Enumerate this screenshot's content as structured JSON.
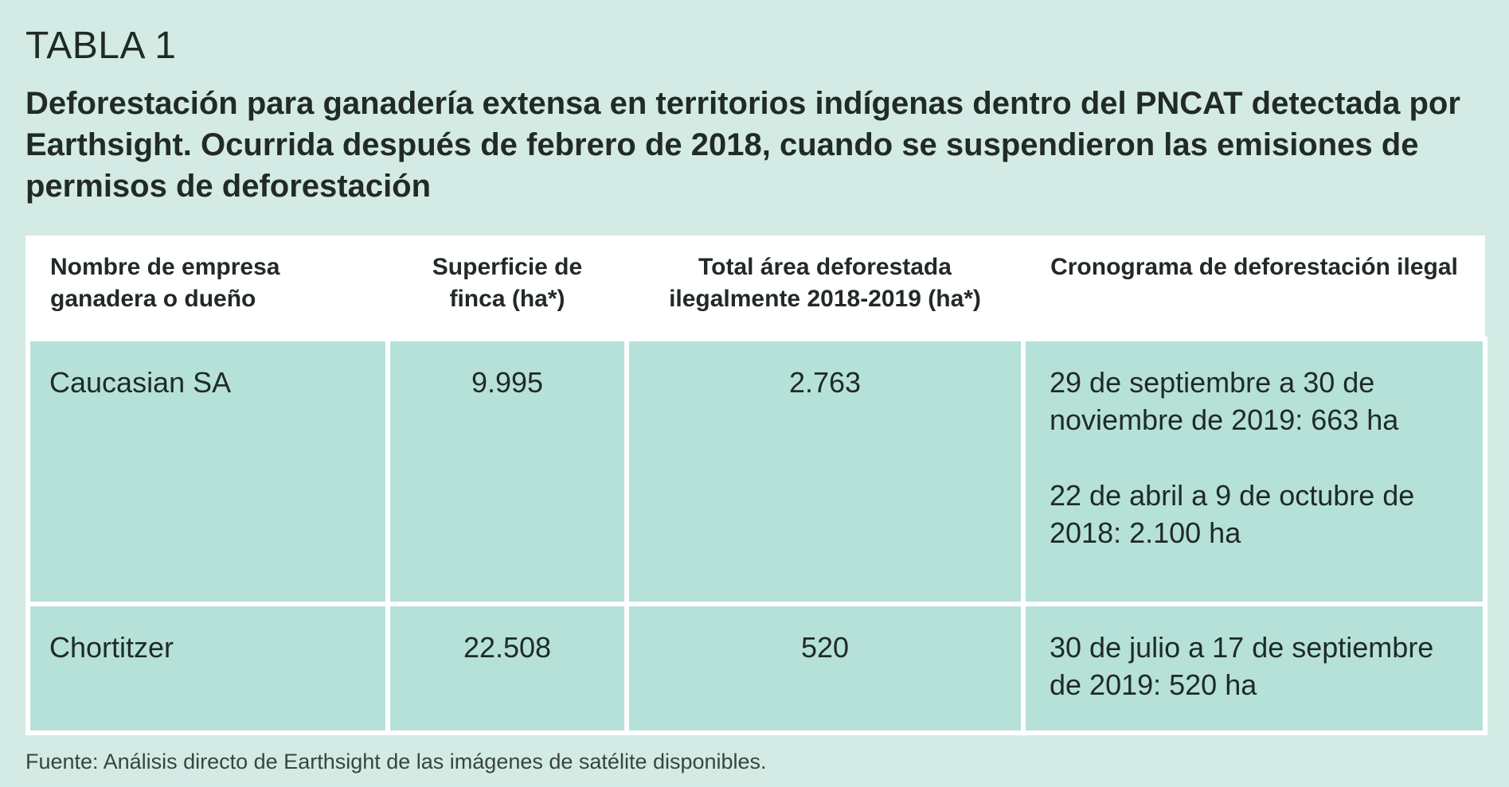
{
  "label": "TABLA 1",
  "title": "Deforestación para ganadería extensa en territorios indígenas dentro del PNCAT detectada por Earthsight. Ocurrida después de febrero de 2018, cuando se suspendieron las emisiones de permisos de deforestación",
  "table": {
    "headers": [
      "Nombre de empresa ganadera o dueño",
      "Superficie de finca (ha*)",
      "Total área deforestada ilegalmente 2018-2019 (ha*)",
      "Cronograma de deforestación ilegal"
    ],
    "rows": [
      {
        "name": "Caucasian SA",
        "area": "9.995",
        "deforested": "2.763",
        "schedule": [
          "29 de septiembre a 30 de noviembre de 2019: 663 ha",
          "22 de abril a 9 de octubre de 2018: 2.100 ha"
        ]
      },
      {
        "name": "Chortitzer",
        "area": "22.508",
        "deforested": "520",
        "schedule": [
          "30 de julio a 17 de septiembre de 2019: 520 ha"
        ]
      }
    ]
  },
  "source": "Fuente: Análisis directo de Earthsight de las imágenes de satélite disponibles.",
  "colors": {
    "background": "#d3ebe4",
    "cell": "#b6e1d8",
    "header": "#ffffff"
  }
}
